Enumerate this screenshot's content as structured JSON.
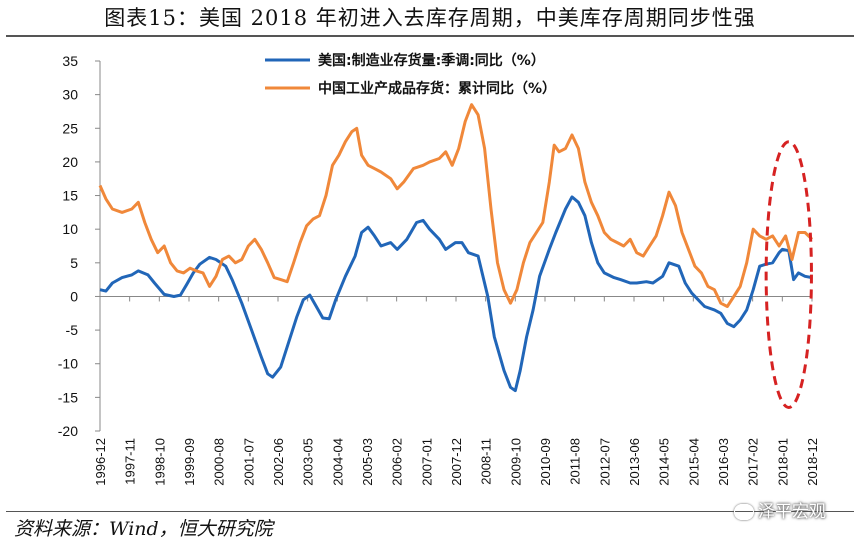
{
  "header": {
    "title": "图表15：美国 2018 年初进入去库存周期，中美库存周期同步性强"
  },
  "footer": {
    "source": "资料来源：Wind，恒大研究院",
    "watermark": "泽平宏观"
  },
  "colors": {
    "us": "#2166b8",
    "cn": "#f0883a",
    "axis": "#888888",
    "ellipse": "#d62222"
  },
  "chart_data": {
    "type": "line",
    "title": "美国 2018 年初进入去库存周期，中美库存周期同步性强",
    "xlabel": "",
    "ylabel": "",
    "ylim": [
      -20,
      35
    ],
    "yticks": [
      35,
      30,
      25,
      20,
      15,
      10,
      5,
      0,
      -5,
      -10,
      -15,
      -20
    ],
    "xlim": [
      1996.917,
      2018.917
    ],
    "xtick_labels": [
      "1996-12",
      "1997-11",
      "1998-10",
      "1999-09",
      "2000-08",
      "2001-07",
      "2002-06",
      "2003-05",
      "2004-04",
      "2005-03",
      "2006-02",
      "2007-01",
      "2007-12",
      "2008-11",
      "2009-10",
      "2010-09",
      "2011-08",
      "2012-07",
      "2013-06",
      "2014-05",
      "2015-04",
      "2016-03",
      "2017-02",
      "2018-01",
      "2018-12"
    ],
    "xtick_values": [
      1996.917,
      1997.833,
      1998.75,
      1999.667,
      2000.583,
      2001.5,
      2002.417,
      2003.333,
      2004.25,
      2005.167,
      2006.083,
      2007.0,
      2007.917,
      2008.833,
      2009.75,
      2010.667,
      2011.583,
      2012.5,
      2013.417,
      2014.333,
      2015.25,
      2016.167,
      2017.083,
      2018.0,
      2018.917
    ],
    "legend_position": "top-center",
    "series": [
      {
        "name": "美国:制造业存货量:季调:同比（%）",
        "color": "#2166b8",
        "points": [
          [
            1996.917,
            1
          ],
          [
            1997.1,
            0.8
          ],
          [
            1997.3,
            2
          ],
          [
            1997.6,
            2.8
          ],
          [
            1997.9,
            3.2
          ],
          [
            1998.1,
            3.8
          ],
          [
            1998.4,
            3.2
          ],
          [
            1998.6,
            2
          ],
          [
            1998.9,
            0.3
          ],
          [
            1999.2,
            0
          ],
          [
            1999.4,
            0.2
          ],
          [
            1999.6,
            1.8
          ],
          [
            1999.8,
            3.5
          ],
          [
            2000.0,
            4.8
          ],
          [
            2000.3,
            5.8
          ],
          [
            2000.5,
            5.5
          ],
          [
            2000.8,
            4.5
          ],
          [
            2001.0,
            2.5
          ],
          [
            2001.3,
            -1
          ],
          [
            2001.6,
            -5
          ],
          [
            2001.9,
            -9
          ],
          [
            2002.1,
            -11.5
          ],
          [
            2002.25,
            -12
          ],
          [
            2002.5,
            -10.5
          ],
          [
            2002.8,
            -6
          ],
          [
            2003.0,
            -3
          ],
          [
            2003.2,
            -0.5
          ],
          [
            2003.4,
            0.2
          ],
          [
            2003.6,
            -1.5
          ],
          [
            2003.8,
            -3.2
          ],
          [
            2004.0,
            -3.3
          ],
          [
            2004.2,
            -0.5
          ],
          [
            2004.5,
            3
          ],
          [
            2004.8,
            6
          ],
          [
            2005.0,
            9.5
          ],
          [
            2005.2,
            10.3
          ],
          [
            2005.4,
            9
          ],
          [
            2005.6,
            7.5
          ],
          [
            2005.9,
            8
          ],
          [
            2006.1,
            7
          ],
          [
            2006.4,
            8.5
          ],
          [
            2006.7,
            11
          ],
          [
            2006.9,
            11.3
          ],
          [
            2007.1,
            10
          ],
          [
            2007.4,
            8.5
          ],
          [
            2007.6,
            7
          ],
          [
            2007.9,
            8
          ],
          [
            2008.1,
            8
          ],
          [
            2008.3,
            6.5
          ],
          [
            2008.6,
            6
          ],
          [
            2008.9,
            0
          ],
          [
            2009.1,
            -6
          ],
          [
            2009.4,
            -11
          ],
          [
            2009.6,
            -13.5
          ],
          [
            2009.75,
            -14
          ],
          [
            2009.9,
            -11
          ],
          [
            2010.1,
            -6
          ],
          [
            2010.3,
            -2
          ],
          [
            2010.5,
            3
          ],
          [
            2010.8,
            7
          ],
          [
            2011.0,
            9.5
          ],
          [
            2011.3,
            13
          ],
          [
            2011.5,
            14.8
          ],
          [
            2011.7,
            14
          ],
          [
            2011.9,
            12
          ],
          [
            2012.1,
            8
          ],
          [
            2012.3,
            5
          ],
          [
            2012.5,
            3.5
          ],
          [
            2012.8,
            2.8
          ],
          [
            2013.0,
            2.5
          ],
          [
            2013.3,
            2
          ],
          [
            2013.5,
            2
          ],
          [
            2013.8,
            2.2
          ],
          [
            2014.0,
            2
          ],
          [
            2014.3,
            3
          ],
          [
            2014.5,
            5
          ],
          [
            2014.8,
            4.5
          ],
          [
            2015.0,
            2
          ],
          [
            2015.2,
            0.5
          ],
          [
            2015.4,
            -0.5
          ],
          [
            2015.6,
            -1.5
          ],
          [
            2015.9,
            -2
          ],
          [
            2016.1,
            -2.5
          ],
          [
            2016.3,
            -4
          ],
          [
            2016.5,
            -4.5
          ],
          [
            2016.7,
            -3.5
          ],
          [
            2016.9,
            -2
          ],
          [
            2017.1,
            1
          ],
          [
            2017.3,
            4.5
          ],
          [
            2017.5,
            4.8
          ],
          [
            2017.7,
            5
          ],
          [
            2017.9,
            6.5
          ],
          [
            2018.0,
            7
          ],
          [
            2018.2,
            6.8
          ],
          [
            2018.35,
            2.5
          ],
          [
            2018.5,
            3.5
          ],
          [
            2018.7,
            3
          ],
          [
            2018.917,
            2.8
          ]
        ]
      },
      {
        "name": "中国工业产成品存货：累计同比（%）",
        "color": "#f0883a",
        "points": [
          [
            1996.917,
            16.5
          ],
          [
            1997.1,
            14.5
          ],
          [
            1997.3,
            13
          ],
          [
            1997.6,
            12.5
          ],
          [
            1997.9,
            13
          ],
          [
            1998.1,
            14
          ],
          [
            1998.3,
            11
          ],
          [
            1998.5,
            8.5
          ],
          [
            1998.7,
            6.5
          ],
          [
            1998.9,
            7.5
          ],
          [
            1999.1,
            5
          ],
          [
            1999.3,
            3.8
          ],
          [
            1999.5,
            3.5
          ],
          [
            1999.7,
            4.2
          ],
          [
            1999.9,
            3.8
          ],
          [
            2000.1,
            3.5
          ],
          [
            2000.3,
            1.5
          ],
          [
            2000.5,
            3
          ],
          [
            2000.7,
            5.5
          ],
          [
            2000.9,
            6
          ],
          [
            2001.1,
            5
          ],
          [
            2001.3,
            5.5
          ],
          [
            2001.5,
            7.5
          ],
          [
            2001.7,
            8.5
          ],
          [
            2001.9,
            7
          ],
          [
            2002.1,
            5
          ],
          [
            2002.3,
            2.8
          ],
          [
            2002.5,
            2.5
          ],
          [
            2002.7,
            2.2
          ],
          [
            2002.9,
            5
          ],
          [
            2003.1,
            8
          ],
          [
            2003.3,
            10.5
          ],
          [
            2003.5,
            11.5
          ],
          [
            2003.7,
            12
          ],
          [
            2003.9,
            15
          ],
          [
            2004.1,
            19.5
          ],
          [
            2004.3,
            21
          ],
          [
            2004.5,
            23
          ],
          [
            2004.7,
            24.5
          ],
          [
            2004.85,
            25
          ],
          [
            2005.0,
            21
          ],
          [
            2005.2,
            19.5
          ],
          [
            2005.4,
            19
          ],
          [
            2005.6,
            18.5
          ],
          [
            2005.9,
            17.5
          ],
          [
            2006.1,
            16
          ],
          [
            2006.3,
            17
          ],
          [
            2006.6,
            19
          ],
          [
            2006.9,
            19.5
          ],
          [
            2007.1,
            20
          ],
          [
            2007.4,
            20.5
          ],
          [
            2007.6,
            21.5
          ],
          [
            2007.8,
            19.5
          ],
          [
            2008.0,
            22
          ],
          [
            2008.2,
            26
          ],
          [
            2008.4,
            28.5
          ],
          [
            2008.6,
            27
          ],
          [
            2008.8,
            22
          ],
          [
            2009.0,
            13
          ],
          [
            2009.2,
            5
          ],
          [
            2009.4,
            1
          ],
          [
            2009.6,
            -1
          ],
          [
            2009.8,
            1
          ],
          [
            2010.0,
            5
          ],
          [
            2010.2,
            8
          ],
          [
            2010.4,
            9.5
          ],
          [
            2010.6,
            11
          ],
          [
            2010.8,
            17
          ],
          [
            2010.95,
            22.5
          ],
          [
            2011.1,
            21.5
          ],
          [
            2011.3,
            22
          ],
          [
            2011.5,
            24
          ],
          [
            2011.7,
            22
          ],
          [
            2011.9,
            17
          ],
          [
            2012.1,
            14
          ],
          [
            2012.3,
            12
          ],
          [
            2012.5,
            9.5
          ],
          [
            2012.7,
            8.5
          ],
          [
            2012.9,
            8
          ],
          [
            2013.1,
            7.5
          ],
          [
            2013.3,
            8.5
          ],
          [
            2013.5,
            6.5
          ],
          [
            2013.7,
            6
          ],
          [
            2013.9,
            7.5
          ],
          [
            2014.1,
            9
          ],
          [
            2014.3,
            12
          ],
          [
            2014.5,
            15.5
          ],
          [
            2014.7,
            13.5
          ],
          [
            2014.9,
            9.5
          ],
          [
            2015.1,
            7
          ],
          [
            2015.3,
            4.5
          ],
          [
            2015.5,
            3.5
          ],
          [
            2015.7,
            1.5
          ],
          [
            2015.9,
            1
          ],
          [
            2016.1,
            -1
          ],
          [
            2016.3,
            -1.5
          ],
          [
            2016.5,
            0
          ],
          [
            2016.7,
            1.5
          ],
          [
            2016.9,
            5
          ],
          [
            2017.1,
            10
          ],
          [
            2017.3,
            9
          ],
          [
            2017.5,
            8.5
          ],
          [
            2017.7,
            9
          ],
          [
            2017.9,
            7.5
          ],
          [
            2018.1,
            9
          ],
          [
            2018.3,
            5.5
          ],
          [
            2018.5,
            9.5
          ],
          [
            2018.7,
            9.5
          ],
          [
            2018.917,
            8.5
          ]
        ]
      }
    ],
    "annotations": [
      {
        "type": "dashed-ellipse",
        "label": "",
        "x_range": [
          2017.5,
          2018.9
        ],
        "y_range": [
          -16.5,
          23
        ]
      }
    ]
  }
}
